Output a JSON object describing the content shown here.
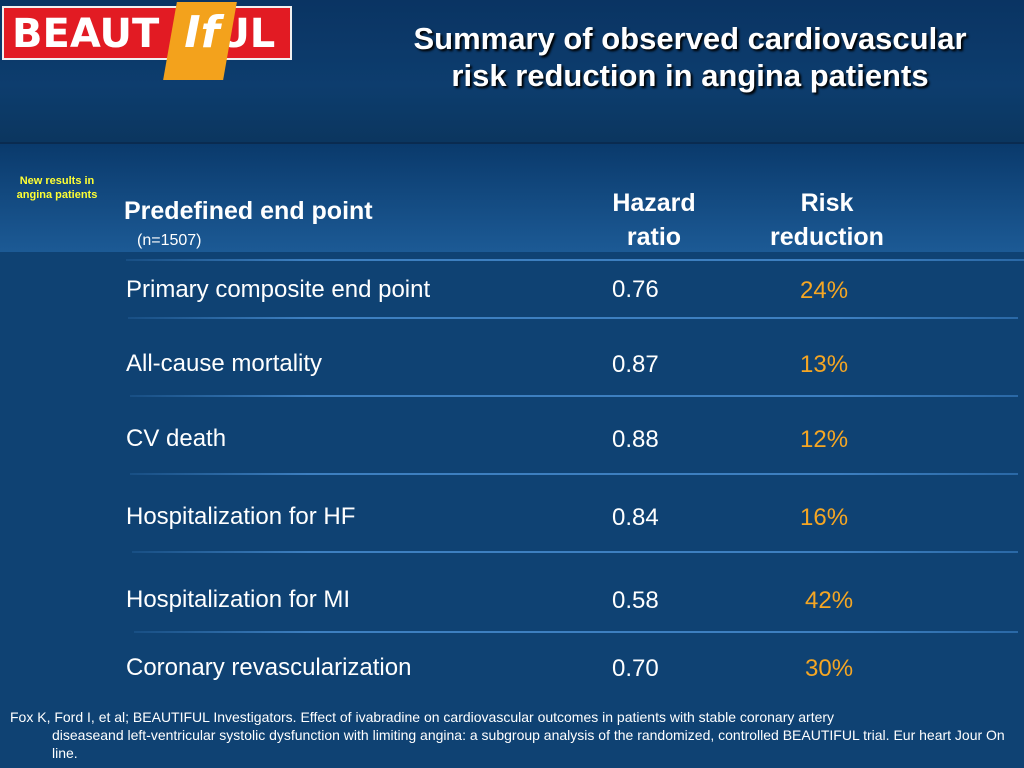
{
  "logo": {
    "prefix": "BEAUT",
    "mark": "If",
    "suffix": "UL"
  },
  "title": {
    "line1": "Summary of observed cardiovascular",
    "line2": "risk reduction in angina  patients"
  },
  "badge": {
    "line1": "New results in",
    "line2": "angina patients"
  },
  "table": {
    "header": {
      "endpoint": "Predefined end point",
      "n": "(n=1507)",
      "hazard_line1": "Hazard",
      "hazard_line2": "ratio",
      "risk_line1": "Risk",
      "risk_line2": "reduction"
    },
    "rows": [
      {
        "label": "Primary composite end point",
        "hazard_ratio": "0.76",
        "risk_reduction": "24%"
      },
      {
        "label": "All-cause mortality",
        "hazard_ratio": "0.87",
        "risk_reduction": "13%"
      },
      {
        "label": "CV death",
        "hazard_ratio": "0.88",
        "risk_reduction": "12%"
      },
      {
        "label": "Hospitalization for HF",
        "hazard_ratio": "0.84",
        "risk_reduction": "16%"
      },
      {
        "label": "Hospitalization for MI",
        "hazard_ratio": "0.58",
        "risk_reduction": "42%"
      },
      {
        "label": "Coronary revascularization",
        "hazard_ratio": "0.70",
        "risk_reduction": "30%"
      }
    ]
  },
  "citation": {
    "line1": "Fox K, Ford I, et al; BEAUTIFUL Investigators. Effect of ivabradine on cardiovascular outcomes in patients with stable coronary artery",
    "rest": "diseaseand left-ventricular systolic dysfunction with limiting angina: a subgroup analysis of the randomized, controlled BEAUTIFUL trial. Eur heart Jour On line."
  },
  "colors": {
    "background": "#0f4273",
    "logo_red": "#e21b23",
    "logo_orange": "#f3a21c",
    "accent_value": "#f5a623",
    "badge_text": "#ffff33"
  }
}
